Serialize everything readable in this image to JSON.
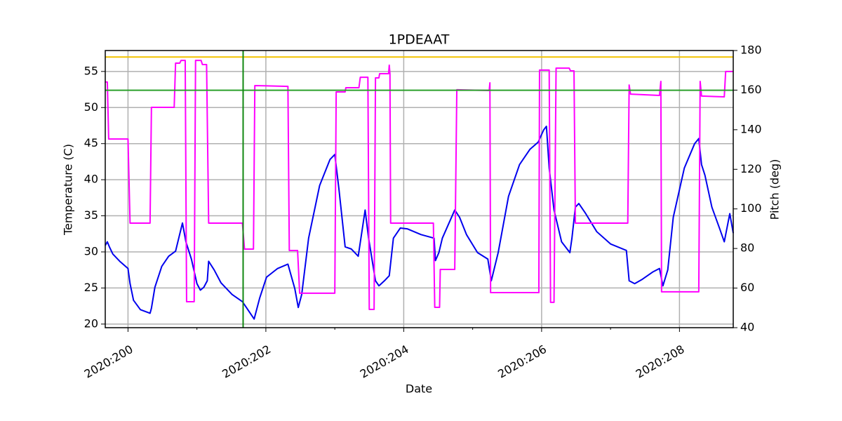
{
  "chart_data": {
    "type": "line",
    "title": "1PDEAAT",
    "xlabel": "Date",
    "ylabel": "Temperature (C)",
    "y2label": "Pitch (deg)",
    "y2color": "#ff00ff",
    "grid": true,
    "xlim": [
      199.67,
      208.78
    ],
    "xticks": [
      {
        "value": 200,
        "label": "2020:200"
      },
      {
        "value": 202,
        "label": "2020:202"
      },
      {
        "value": 204,
        "label": "2020:204"
      },
      {
        "value": 206,
        "label": "2020:206"
      },
      {
        "value": 208,
        "label": "2020:208"
      }
    ],
    "xminorticks": [
      201,
      203,
      205,
      207
    ],
    "ylim": [
      19.5,
      57.9
    ],
    "yticks": [
      20,
      25,
      30,
      35,
      40,
      45,
      50,
      55
    ],
    "y2lim": [
      40,
      180
    ],
    "y2ticks": [
      40,
      60,
      80,
      100,
      120,
      140,
      160,
      180
    ],
    "hlines": [
      {
        "value": 57,
        "color": "#f2c200"
      },
      {
        "value": 52.4,
        "color": "#2ca02c"
      }
    ],
    "vlines": [
      {
        "value": 201.67,
        "color": "#118811"
      }
    ],
    "series": [
      {
        "color": "#0000ee",
        "axis": "y",
        "x": [
          199.67,
          199.7,
          199.73,
          199.78,
          199.88,
          200.0,
          200.03,
          200.08,
          200.18,
          200.32,
          200.34,
          200.39,
          200.49,
          200.59,
          200.69,
          200.79,
          200.84,
          200.92,
          201.0,
          201.05,
          201.1,
          201.15,
          201.17,
          201.25,
          201.35,
          201.51,
          201.66,
          201.71,
          201.83,
          201.91,
          202.01,
          202.17,
          202.32,
          202.42,
          202.47,
          202.52,
          202.62,
          202.78,
          202.93,
          203.0,
          203.06,
          203.15,
          203.24,
          203.34,
          203.44,
          203.49,
          203.59,
          203.64,
          203.72,
          203.79,
          203.85,
          203.95,
          204.05,
          204.25,
          204.44,
          204.46,
          204.51,
          204.56,
          204.74,
          204.81,
          204.91,
          205.07,
          205.22,
          205.27,
          205.37,
          205.52,
          205.68,
          205.83,
          205.95,
          206.03,
          206.07,
          206.11,
          206.18,
          206.29,
          206.41,
          206.44,
          206.49,
          206.54,
          206.64,
          206.8,
          207.0,
          207.23,
          207.27,
          207.35,
          207.46,
          207.61,
          207.71,
          207.76,
          207.83,
          207.91,
          208.07,
          208.22,
          208.28,
          208.32,
          208.37,
          208.47,
          208.58,
          208.65,
          208.73,
          208.78
        ],
        "values": [
          30.9,
          31.4,
          30.7,
          29.7,
          28.7,
          27.7,
          25.6,
          23.3,
          22.0,
          21.5,
          22.2,
          25.1,
          28.0,
          29.4,
          30.1,
          34.0,
          31.4,
          29.0,
          25.6,
          24.7,
          25.1,
          26.0,
          28.7,
          27.5,
          25.7,
          24.1,
          23.1,
          22.4,
          20.7,
          23.6,
          26.5,
          27.7,
          28.3,
          24.9,
          22.3,
          24.1,
          31.9,
          39.2,
          42.8,
          43.5,
          38.7,
          30.7,
          30.4,
          29.4,
          35.8,
          31.9,
          26.0,
          25.3,
          26.0,
          26.7,
          31.9,
          33.3,
          33.2,
          32.4,
          31.9,
          28.8,
          29.9,
          31.9,
          35.8,
          34.8,
          32.4,
          29.9,
          29.0,
          26.0,
          29.9,
          37.7,
          42.1,
          44.2,
          45.2,
          46.9,
          47.4,
          41.6,
          35.8,
          31.4,
          29.9,
          31.9,
          36.2,
          36.7,
          35.3,
          32.8,
          31.1,
          30.2,
          26.0,
          25.6,
          26.2,
          27.2,
          27.7,
          25.3,
          27.5,
          34.8,
          41.6,
          45.0,
          45.7,
          42.1,
          40.6,
          36.2,
          33.3,
          31.4,
          35.3,
          32.6
        ]
      },
      {
        "color": "#ff00ff",
        "axis": "y2",
        "x": [
          199.67,
          199.7,
          199.72,
          200.0,
          200.03,
          200.32,
          200.34,
          200.67,
          200.69,
          200.75,
          200.77,
          200.83,
          200.85,
          200.96,
          200.98,
          201.06,
          201.08,
          201.14,
          201.17,
          201.66,
          201.69,
          201.82,
          201.84,
          202.32,
          202.34,
          202.46,
          202.49,
          203.0,
          203.02,
          203.15,
          203.16,
          203.35,
          203.37,
          203.48,
          203.5,
          203.57,
          203.59,
          203.64,
          203.65,
          203.78,
          203.79,
          203.8,
          203.81,
          204.43,
          204.45,
          204.52,
          204.53,
          204.74,
          204.77,
          205.24,
          205.25,
          205.26,
          205.96,
          205.97,
          206.11,
          206.13,
          206.18,
          206.21,
          206.4,
          206.42,
          206.47,
          206.49,
          207.25,
          207.27,
          207.29,
          207.71,
          207.73,
          207.74,
          208.28,
          208.3,
          208.32,
          208.65,
          208.67,
          208.78
        ],
        "values": [
          164.1,
          164.1,
          135.3,
          135.3,
          92.8,
          92.8,
          151.3,
          151.3,
          173.6,
          173.6,
          175.0,
          175.0,
          53.1,
          53.1,
          175.0,
          175.0,
          172.9,
          172.9,
          92.8,
          92.8,
          79.7,
          79.7,
          162.3,
          161.9,
          79.0,
          79.0,
          57.4,
          57.4,
          159.1,
          159.1,
          161.2,
          161.2,
          166.5,
          166.5,
          49.2,
          49.2,
          166.2,
          166.2,
          168.3,
          168.3,
          172.6,
          168.3,
          92.8,
          92.8,
          50.3,
          50.3,
          69.4,
          69.4,
          160.2,
          159.8,
          163.7,
          57.7,
          57.7,
          170.1,
          170.1,
          52.8,
          52.8,
          171.1,
          171.1,
          169.7,
          169.7,
          92.8,
          92.8,
          162.6,
          158.0,
          157.3,
          164.4,
          58.1,
          58.1,
          164.4,
          157.0,
          156.6,
          169.4,
          169.4
        ]
      }
    ]
  }
}
